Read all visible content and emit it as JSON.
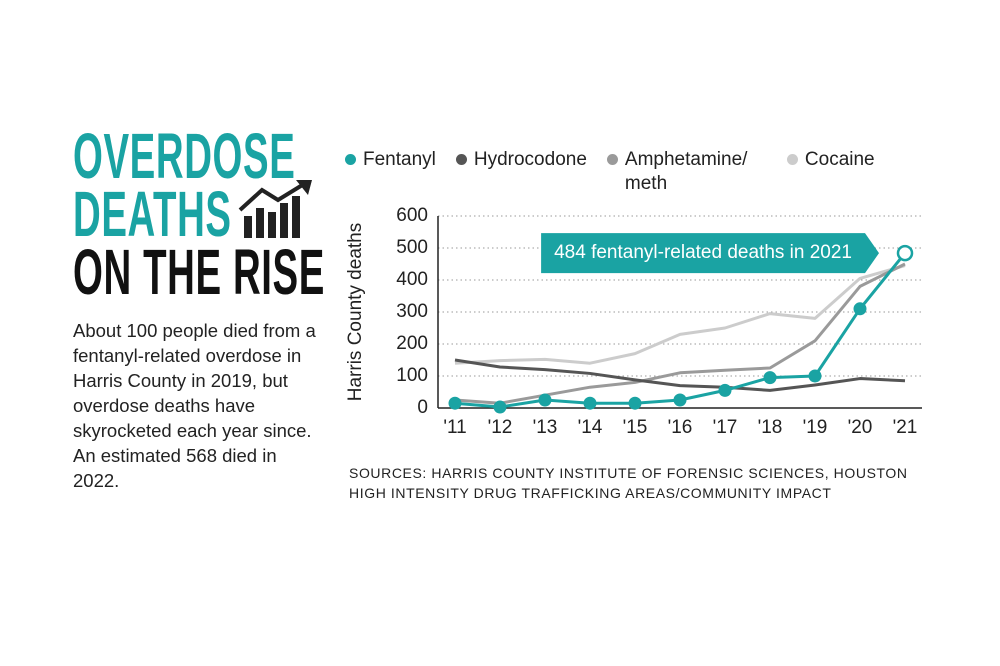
{
  "chart_data": {
    "type": "line",
    "title": [
      "OVERDOSE",
      "DEATHS",
      "ON THE RISE"
    ],
    "description": "About 100 people died from a fentanyl-related overdose in Harris County in 2019, but overdose deaths have skyrocketed each year since. An estimated 568 died in 2022.",
    "y_label": "Harris County deaths",
    "annotation": "484 fentanyl-related deaths in 2021",
    "source": "SOURCES: HARRIS COUNTY INSTITUTE OF FORENSIC SCIENCES, HOUSTON HIGH INTENSITY DRUG TRAFFICKING AREAS/COMMUNITY IMPACT",
    "categories": [
      "'11",
      "'12",
      "'13",
      "'14",
      "'15",
      "'16",
      "'17",
      "'18",
      "'19",
      "'20",
      "'21"
    ],
    "series": [
      {
        "name": "Fentanyl",
        "color": "#1aa3a3",
        "markers": true,
        "values": [
          15,
          3,
          25,
          15,
          15,
          25,
          55,
          95,
          100,
          310,
          484
        ]
      },
      {
        "name": "Hydrocodone",
        "color": "#555555",
        "markers": false,
        "values": [
          150,
          128,
          120,
          108,
          88,
          70,
          65,
          55,
          72,
          92,
          85
        ]
      },
      {
        "name": "Amphetamine/ meth",
        "color": "#9a9a9a",
        "markers": false,
        "values": [
          25,
          15,
          40,
          65,
          80,
          110,
          118,
          125,
          210,
          380,
          450
        ]
      },
      {
        "name": "Cocaine",
        "color": "#cccccc",
        "markers": false,
        "values": [
          140,
          148,
          152,
          140,
          170,
          230,
          250,
          295,
          280,
          405,
          445
        ]
      }
    ],
    "ylim": [
      0,
      600
    ],
    "yticks": [
      0,
      100,
      200,
      300,
      400,
      500,
      600
    ],
    "grid": true
  }
}
